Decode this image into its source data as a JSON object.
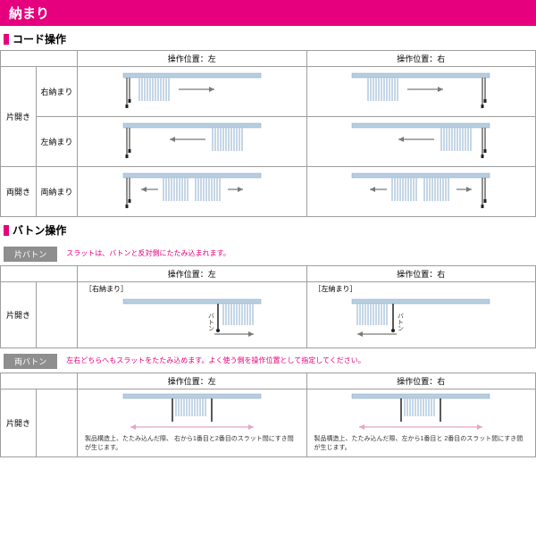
{
  "banner": {
    "text": "納まり",
    "bg_color": "#e6007e",
    "text_color": "#ffffff"
  },
  "colors": {
    "pink": "#e6007e",
    "border": "#9e9e9e",
    "tag_bg": "#8e8e8e",
    "rail": "#b8cde0",
    "slat": "#c5d6e6",
    "cord": "#222222",
    "arrow": "#7a7a7a",
    "red_text": "#e6007e",
    "pink_arrow": "#e5a5c5"
  },
  "section1": {
    "title": "コード操作",
    "col_headers": [
      "操作位置：左",
      "操作位置：右"
    ],
    "row_group1": {
      "label": "片開き",
      "rows": [
        "右納まり",
        "左納まり"
      ]
    },
    "row_group2": {
      "label": "両開き",
      "rows": [
        "両納まり"
      ]
    },
    "diagrams": {
      "r1c1": {
        "type": "single",
        "stack_side": "left",
        "cord_side": "left",
        "arrow_dir": "right"
      },
      "r1c2": {
        "type": "single",
        "stack_side": "left",
        "cord_side": "right",
        "arrow_dir": "right"
      },
      "r2c1": {
        "type": "single",
        "stack_side": "right",
        "cord_side": "left",
        "arrow_dir": "left"
      },
      "r2c2": {
        "type": "single",
        "stack_side": "right",
        "cord_side": "right",
        "arrow_dir": "left"
      },
      "r3c1": {
        "type": "double",
        "cord_side": "left"
      },
      "r3c2": {
        "type": "double",
        "cord_side": "right"
      }
    }
  },
  "section2": {
    "title": "バトン操作",
    "sub1": {
      "tag": "片バトン",
      "note": "スラットは、バトンと反対側にたたみ込まれます。",
      "col_headers": [
        "操作位置：左",
        "操作位置：右"
      ],
      "row_label": "片開き",
      "left_bracket": "［右納まり］",
      "right_bracket": "［左納まり］",
      "baton_label": "バトン",
      "diagrams": {
        "c1": {
          "type": "baton_single",
          "stack_side": "right",
          "baton_side": "left_of_stack",
          "arrow_dir": "right"
        },
        "c2": {
          "type": "baton_single",
          "stack_side": "left",
          "baton_side": "right_of_stack",
          "arrow_dir": "left"
        }
      }
    },
    "sub2": {
      "tag": "両バトン",
      "note": "左右どちらへもスラットをたたみ込めます。よく使う側を操作位置として指定してください。",
      "col_headers": [
        "操作位置：左",
        "操作位置：右"
      ],
      "row_label": "片開き",
      "foot_left": "製品構造上、たたみ込んだ際、\n右から1番目と2番目のスラット間にすき間が生じます。",
      "foot_right": "製品構造上、たたみ込んだ際、左から1番目と\n2番目のスラット間にすき間が生じます。",
      "diagrams": {
        "c1": {
          "type": "baton_double",
          "main_baton": "left"
        },
        "c2": {
          "type": "baton_double",
          "main_baton": "right"
        }
      }
    }
  }
}
